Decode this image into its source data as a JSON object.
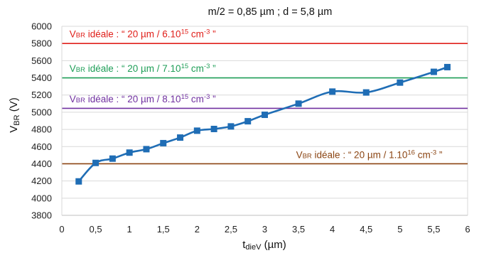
{
  "chart_data": {
    "type": "line",
    "title": "m/2 = 0,85 µm  ; d = 5,8 µm",
    "xlabel": {
      "main": "t",
      "sub": "dieV",
      "unit": " (µm)"
    },
    "ylabel": {
      "main": "V",
      "sub": "BR",
      "unit": " (V)"
    },
    "xlim": [
      0,
      6
    ],
    "ylim": [
      3800,
      6000
    ],
    "x_ticks": [
      {
        "value": 0,
        "label": "0"
      },
      {
        "value": 0.5,
        "label": "0,5"
      },
      {
        "value": 1,
        "label": "1"
      },
      {
        "value": 1.5,
        "label": "1,5"
      },
      {
        "value": 2,
        "label": "2"
      },
      {
        "value": 2.5,
        "label": "2,5"
      },
      {
        "value": 3,
        "label": "3"
      },
      {
        "value": 3.5,
        "label": "3,5"
      },
      {
        "value": 4,
        "label": "4"
      },
      {
        "value": 4.5,
        "label": "4,5"
      },
      {
        "value": 5,
        "label": "5"
      },
      {
        "value": 5.5,
        "label": "5,5"
      },
      {
        "value": 6,
        "label": "6"
      }
    ],
    "y_ticks": [
      {
        "value": 3800,
        "label": "3800"
      },
      {
        "value": 4000,
        "label": "4000"
      },
      {
        "value": 4200,
        "label": "4200"
      },
      {
        "value": 4400,
        "label": "4400"
      },
      {
        "value": 4600,
        "label": "4600"
      },
      {
        "value": 4800,
        "label": "4800"
      },
      {
        "value": 5000,
        "label": "5000"
      },
      {
        "value": 5200,
        "label": "5200"
      },
      {
        "value": 5400,
        "label": "5400"
      },
      {
        "value": 5600,
        "label": "5600"
      },
      {
        "value": 5800,
        "label": "5800"
      },
      {
        "value": 6000,
        "label": "6000"
      }
    ],
    "grid": {
      "horizontal": true,
      "vertical": false
    },
    "series": [
      {
        "color": "#1f6db5",
        "marker": "square",
        "points": [
          {
            "x": 0.25,
            "y": 4195
          },
          {
            "x": 0.5,
            "y": 4410
          },
          {
            "x": 0.75,
            "y": 4460
          },
          {
            "x": 1.0,
            "y": 4530
          },
          {
            "x": 1.25,
            "y": 4570
          },
          {
            "x": 1.5,
            "y": 4640
          },
          {
            "x": 1.75,
            "y": 4705
          },
          {
            "x": 2.0,
            "y": 4785
          },
          {
            "x": 2.25,
            "y": 4805
          },
          {
            "x": 2.5,
            "y": 4835
          },
          {
            "x": 2.75,
            "y": 4895
          },
          {
            "x": 3.0,
            "y": 4970
          },
          {
            "x": 3.5,
            "y": 5100
          },
          {
            "x": 4.0,
            "y": 5240
          },
          {
            "x": 4.5,
            "y": 5230
          },
          {
            "x": 5.0,
            "y": 5345
          },
          {
            "x": 5.5,
            "y": 5470
          },
          {
            "x": 5.7,
            "y": 5525
          }
        ]
      }
    ],
    "reference_lines": [
      {
        "y": 5800,
        "color": "#e0201b",
        "label": {
          "v": "V",
          "sub": "BR",
          "pre": " idéale : “ 20 µm / 6.10",
          "sup": "15",
          "post": " cm",
          "sup2": "-3",
          "end": " ”"
        },
        "label_x": 0.05,
        "label_y": 5870
      },
      {
        "y": 5400,
        "color": "#1e9e57",
        "label": {
          "v": "V",
          "sub": "BR",
          "pre": " idéale : “ 20 µm / 7.10",
          "sup": "15",
          "post": " cm",
          "sup2": "-3",
          "end": " ”"
        },
        "label_x": 0.05,
        "label_y": 5470
      },
      {
        "y": 5045,
        "color": "#7030a0",
        "label": {
          "v": "V",
          "sub": "BR",
          "pre": " idéale : “ 20 µm / 8.10",
          "sup": "15",
          "post": " cm",
          "sup2": "-3",
          "end": " ”"
        },
        "label_x": 0.05,
        "label_y": 5115
      },
      {
        "y": 4400,
        "color": "#8b4513",
        "label": {
          "v": "V",
          "sub": "BR",
          "pre": " idéale : “ 20 µm / 1.10",
          "sup": "16",
          "post": " cm",
          "sup2": "-3",
          "end": " ”"
        },
        "label_x": 3.4,
        "label_y": 4465
      }
    ]
  }
}
